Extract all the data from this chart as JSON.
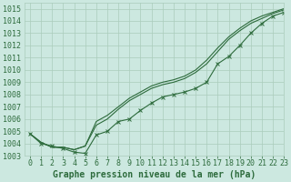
{
  "title": "Graphe pression niveau de la mer (hPa)",
  "bg_color": "#cce8e0",
  "grid_color": "#aaccbb",
  "line_color": "#2d6b3c",
  "xlim": [
    -0.5,
    23
  ],
  "ylim": [
    1003,
    1015.5
  ],
  "x_ticks": [
    0,
    1,
    2,
    3,
    4,
    5,
    6,
    7,
    8,
    9,
    10,
    11,
    12,
    13,
    14,
    15,
    16,
    17,
    18,
    19,
    20,
    21,
    22,
    23
  ],
  "y_ticks": [
    1003,
    1004,
    1005,
    1006,
    1007,
    1008,
    1009,
    1010,
    1011,
    1012,
    1013,
    1014,
    1015
  ],
  "series_plain": [
    [
      1004.8,
      1004.1,
      1003.7,
      1003.7,
      1003.5,
      1003.8,
      1005.5,
      1006.0,
      1006.8,
      1007.5,
      1008.0,
      1008.5,
      1008.8,
      1009.0,
      1009.3,
      1009.8,
      1010.5,
      1011.5,
      1012.5,
      1013.2,
      1013.8,
      1014.2,
      1014.6,
      1014.9
    ],
    [
      1004.8,
      1004.1,
      1003.7,
      1003.7,
      1003.5,
      1003.8,
      1005.8,
      1006.3,
      1007.0,
      1007.7,
      1008.2,
      1008.7,
      1009.0,
      1009.2,
      1009.5,
      1010.0,
      1010.8,
      1011.8,
      1012.7,
      1013.4,
      1014.0,
      1014.4,
      1014.7,
      1015.0
    ]
  ],
  "series_marked": [
    1004.8,
    1004.0,
    1003.8,
    1003.6,
    1003.3,
    1003.2,
    1004.7,
    1005.0,
    1005.8,
    1006.0,
    1006.7,
    1007.3,
    1007.8,
    1008.0,
    1008.2,
    1008.5,
    1009.0,
    1010.5,
    1011.1,
    1012.0,
    1013.0,
    1013.8,
    1014.4,
    1014.7
  ],
  "font_size": 7,
  "tick_font_size": 6
}
